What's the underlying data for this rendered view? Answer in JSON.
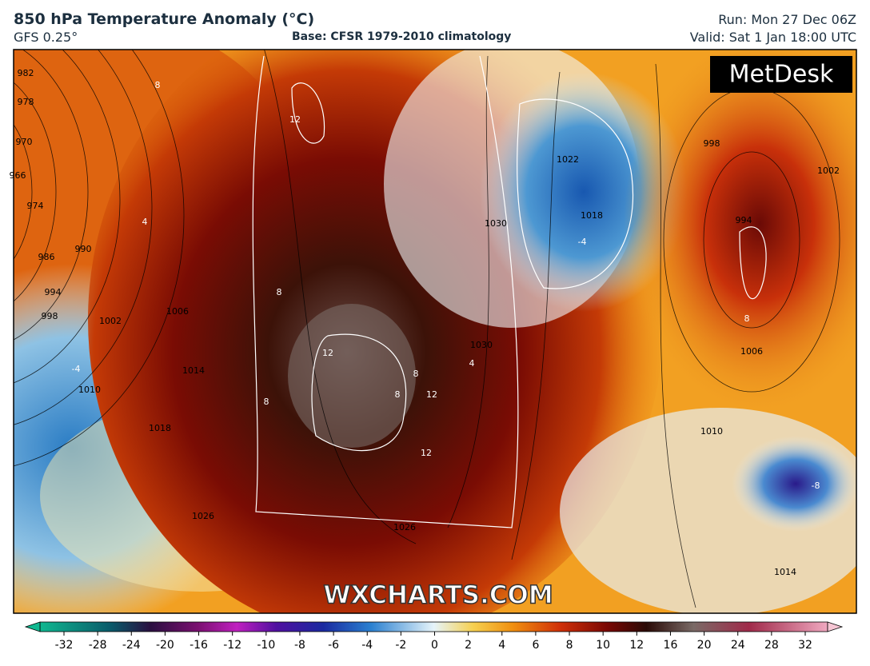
{
  "header": {
    "title": "850 hPa Temperature Anomaly (°C)",
    "model": "GFS 0.25°",
    "base": "Base: CFSR 1979-2010 climatology",
    "run": "Run: Mon 27 Dec 06Z",
    "valid": "Valid: Sat 1 Jan 18:00 UTC"
  },
  "map": {
    "logo": "MetDesk",
    "watermark": "WXCHARTS.COM",
    "isobar_labels": [
      "982",
      "978",
      "970",
      "966",
      "974",
      "986",
      "990",
      "994",
      "998",
      "1002",
      "1006",
      "1010",
      "1014",
      "1018",
      "1026",
      "1026",
      "1030",
      "1022",
      "1018",
      "1030",
      "998",
      "1002",
      "994",
      "1006",
      "1010",
      "1014"
    ],
    "anomaly_labels": [
      "8",
      "12",
      "4",
      "8",
      "8",
      "12",
      "12",
      "8",
      "12",
      "8",
      "-4",
      "4",
      "-4",
      "8",
      "-8"
    ]
  },
  "colorbar": {
    "ticks": [
      -32,
      -28,
      -24,
      -20,
      -16,
      -12,
      -10,
      -8,
      -6,
      -4,
      -2,
      0,
      2,
      4,
      6,
      8,
      10,
      12,
      16,
      20,
      24,
      28,
      32
    ]
  }
}
